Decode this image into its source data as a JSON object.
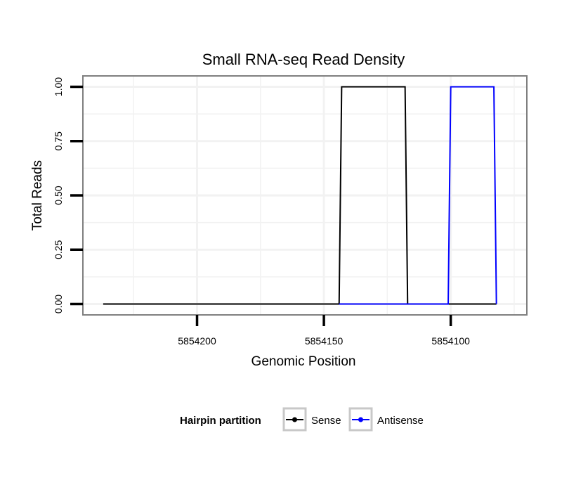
{
  "chart_data": {
    "type": "line",
    "title": "Small RNA-seq Read Density",
    "xlabel": "Genomic Position",
    "ylabel": "Total Reads",
    "x_reversed": true,
    "xlim": [
      5854245,
      5854070
    ],
    "ylim": [
      -0.05,
      1.05
    ],
    "x_ticks": [
      5854200,
      5854150,
      5854100
    ],
    "x_tick_labels": [
      "5854200",
      "5854150",
      "5854100"
    ],
    "y_ticks": [
      0,
      0.25,
      0.5,
      0.75,
      1.0
    ],
    "y_tick_labels": [
      "0.00",
      "0.25",
      "0.50",
      "0.75",
      "1.00"
    ],
    "grid": true,
    "legend": {
      "title": "Hairpin partition",
      "position": "bottom"
    },
    "series": [
      {
        "name": "Sense",
        "color": "#000000",
        "x": [
          5854237,
          5854144,
          5854143,
          5854118,
          5854117,
          5854082
        ],
        "y": [
          0,
          0,
          1,
          1,
          0,
          0
        ]
      },
      {
        "name": "Antisense",
        "color": "#0000ff",
        "x": [
          5854144,
          5854101,
          5854100,
          5854083,
          5854082
        ],
        "y": [
          0,
          0,
          1,
          1,
          0
        ]
      }
    ]
  }
}
